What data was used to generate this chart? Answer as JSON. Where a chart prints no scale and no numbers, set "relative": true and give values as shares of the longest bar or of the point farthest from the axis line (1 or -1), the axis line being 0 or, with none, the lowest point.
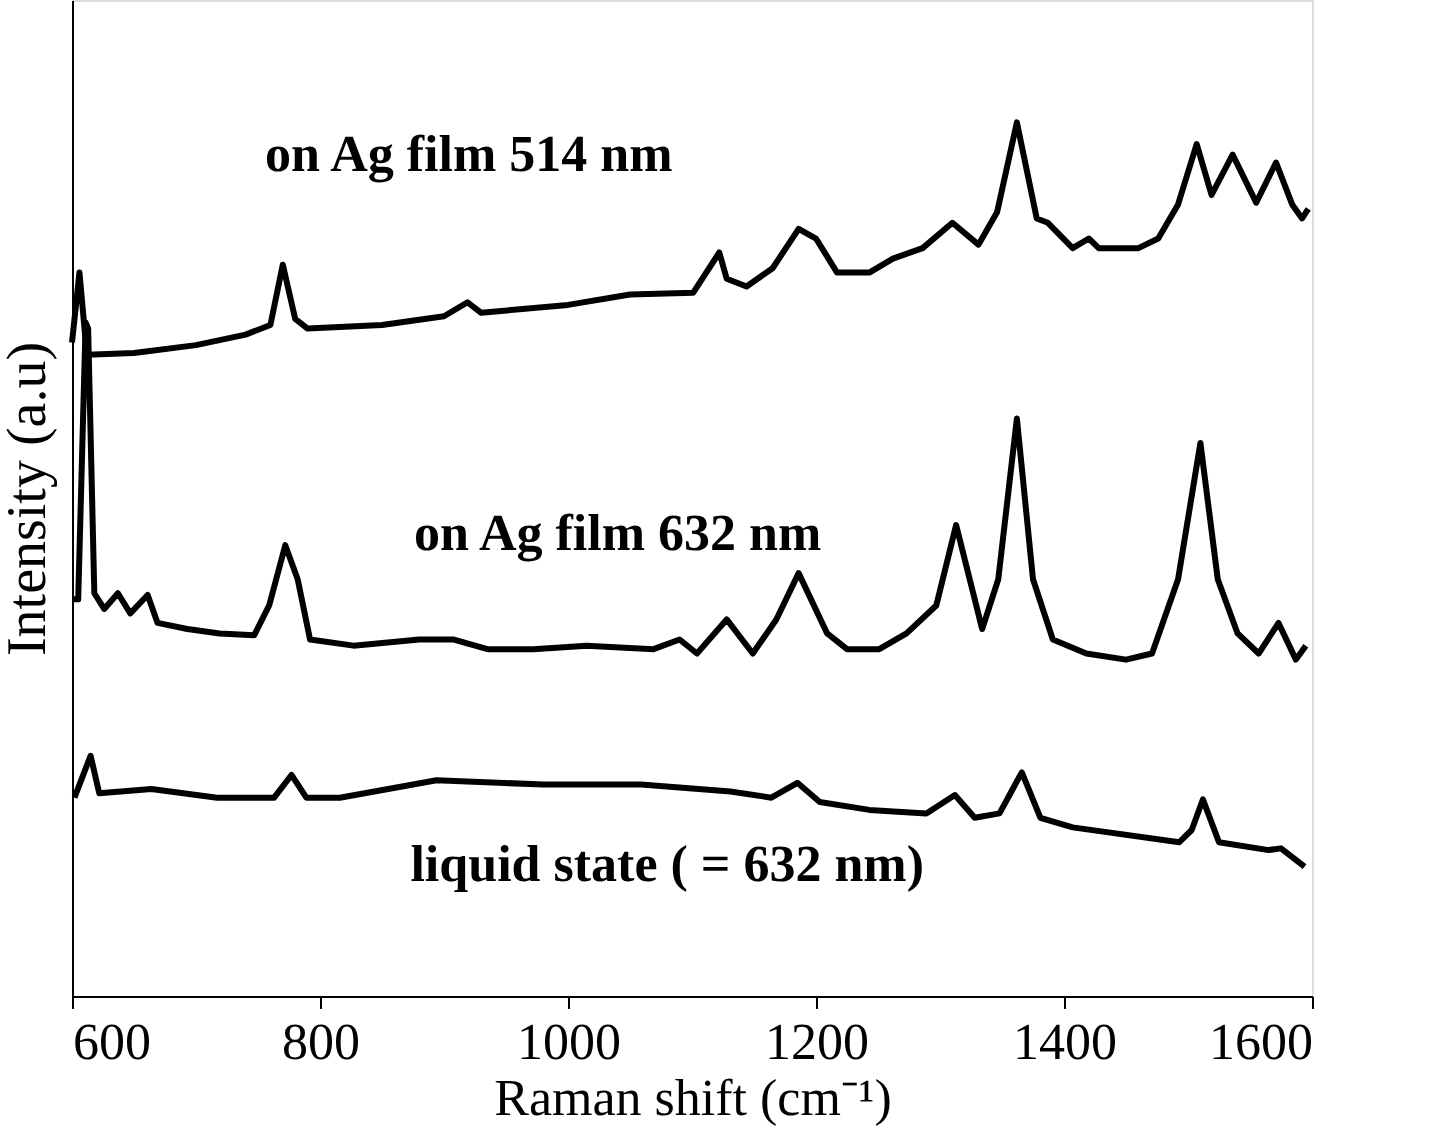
{
  "chart_data": {
    "type": "line",
    "relative": true,
    "xlabel": "Raman shift (cm⁻¹)",
    "ylabel": "Intensity (a.u)",
    "xlim": [
      600,
      1600
    ],
    "xticks": [
      600,
      800,
      1000,
      1200,
      1400,
      1600
    ],
    "grid": false,
    "line_style": "solid",
    "series": [
      {
        "name": "on Ag film 514 nm",
        "color": "#000000",
        "x": [
          600,
          606,
          612,
          650,
          700,
          740,
          760,
          770,
          780,
          790,
          850,
          900,
          919,
          930,
          1000,
          1050,
          1101,
          1122,
          1128,
          1144,
          1165,
          1186,
          1200,
          1217,
          1243,
          1262,
          1286,
          1310,
          1331,
          1346,
          1362,
          1378,
          1387,
          1407,
          1420,
          1428,
          1460,
          1476,
          1492,
          1507,
          1519,
          1536,
          1555,
          1571,
          1584,
          1592,
          1597
        ],
        "values": [
          0.748,
          0.828,
          0.734,
          0.736,
          0.745,
          0.757,
          0.768,
          0.837,
          0.775,
          0.764,
          0.768,
          0.778,
          0.794,
          0.782,
          0.791,
          0.803,
          0.805,
          0.851,
          0.821,
          0.812,
          0.833,
          0.878,
          0.867,
          0.828,
          0.828,
          0.844,
          0.856,
          0.885,
          0.86,
          0.897,
          1.0,
          0.89,
          0.885,
          0.856,
          0.867,
          0.856,
          0.856,
          0.867,
          0.906,
          0.975,
          0.917,
          0.963,
          0.908,
          0.954,
          0.906,
          0.89,
          0.901
        ]
      },
      {
        "name": "on Ag film 632 nm",
        "color": "#000000",
        "x": [
          600,
          605,
          611,
          613,
          618,
          626,
          637,
          647,
          661,
          669,
          693,
          719,
          747,
          759,
          772,
          782,
          792,
          827,
          880,
          908,
          935,
          972,
          1015,
          1069,
          1090,
          1104,
          1128,
          1149,
          1168,
          1186,
          1209,
          1225,
          1251,
          1273,
          1297,
          1313,
          1334,
          1347,
          1362,
          1375,
          1391,
          1418,
          1450,
          1471,
          1492,
          1510,
          1524,
          1540,
          1557,
          1573,
          1587,
          1595
        ],
        "values": [
          0.454,
          0.454,
          0.771,
          0.764,
          0.461,
          0.443,
          0.461,
          0.438,
          0.459,
          0.427,
          0.42,
          0.415,
          0.413,
          0.447,
          0.516,
          0.477,
          0.408,
          0.401,
          0.408,
          0.408,
          0.397,
          0.397,
          0.401,
          0.397,
          0.408,
          0.392,
          0.431,
          0.392,
          0.431,
          0.484,
          0.415,
          0.397,
          0.397,
          0.415,
          0.447,
          0.539,
          0.42,
          0.477,
          0.661,
          0.477,
          0.408,
          0.392,
          0.385,
          0.392,
          0.477,
          0.633,
          0.477,
          0.415,
          0.392,
          0.427,
          0.385,
          0.401
        ]
      },
      {
        "name": "liquid state ( = 632 nm)",
        "color": "#000000",
        "x": [
          602,
          615,
          622,
          664,
          717,
          763,
          777,
          789,
          816,
          894,
          980,
          1059,
          1131,
          1164,
          1185,
          1203,
          1243,
          1289,
          1312,
          1328,
          1348,
          1366,
          1381,
          1407,
          1493,
          1503,
          1512,
          1525,
          1565,
          1575,
          1594
        ],
        "values": [
          0.227,
          0.275,
          0.232,
          0.237,
          0.227,
          0.227,
          0.253,
          0.227,
          0.227,
          0.247,
          0.242,
          0.242,
          0.234,
          0.227,
          0.244,
          0.222,
          0.213,
          0.209,
          0.23,
          0.204,
          0.209,
          0.256,
          0.204,
          0.193,
          0.176,
          0.19,
          0.225,
          0.176,
          0.167,
          0.169,
          0.148
        ]
      }
    ]
  }
}
